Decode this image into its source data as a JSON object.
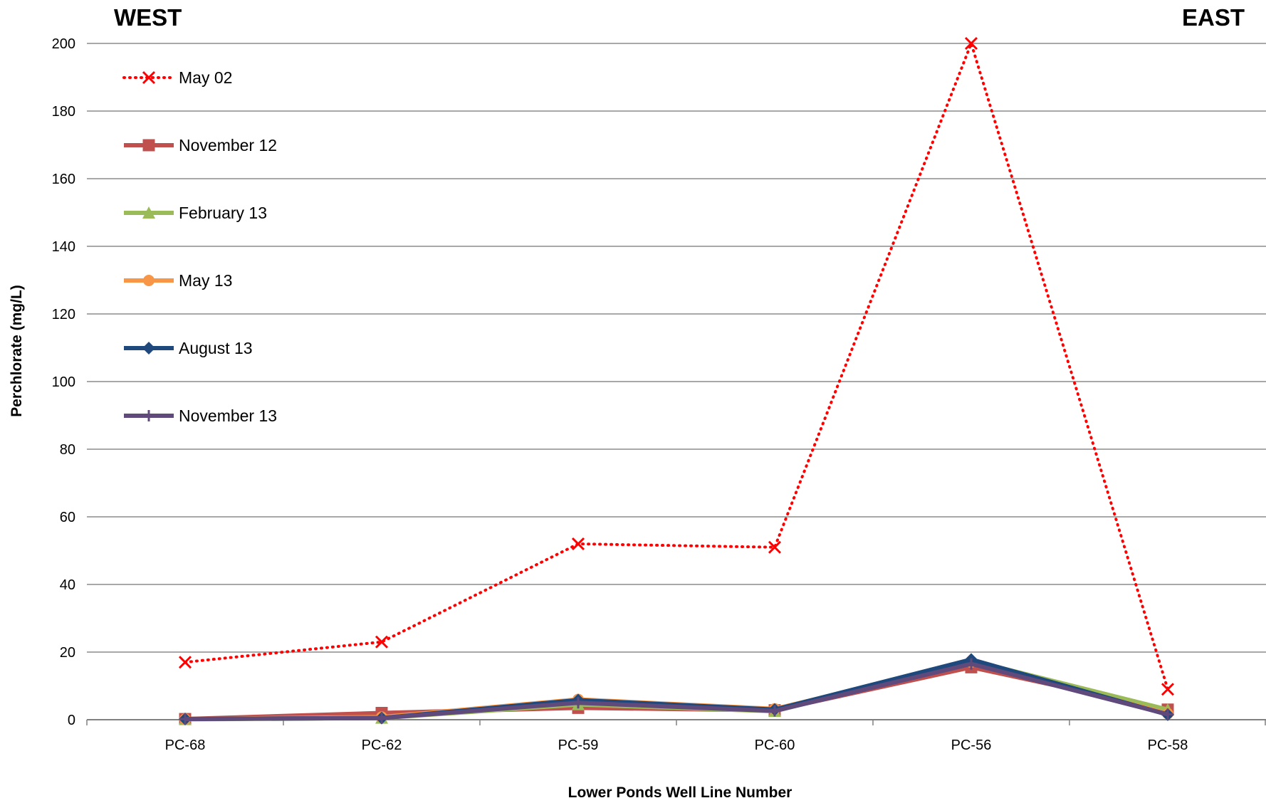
{
  "corner_labels": {
    "left": "WEST",
    "right": "EAST"
  },
  "chart_data": {
    "type": "line",
    "xlabel": "Lower Ponds Well Line Number",
    "ylabel": "Perchlorate (mg/L)",
    "ylim": [
      0,
      200
    ],
    "yticks": [
      0,
      20,
      40,
      60,
      80,
      100,
      120,
      140,
      160,
      180,
      200
    ],
    "grid": true,
    "legend_position": "top-left",
    "categories": [
      "PC-68",
      "PC-62",
      "PC-59",
      "PC-60",
      "PC-56",
      "PC-58"
    ],
    "series": [
      {
        "name": "May 02",
        "values": [
          17,
          23,
          52,
          51,
          200,
          9
        ],
        "color": "#ff0000",
        "marker": "x",
        "style": "dotted"
      },
      {
        "name": "November 12",
        "values": [
          0.2,
          2.0,
          3.5,
          2.8,
          15.5,
          3.0
        ],
        "color": "#c0504d",
        "marker": "square",
        "style": "solid"
      },
      {
        "name": "February 13",
        "values": [
          0.1,
          0.5,
          4.5,
          2.5,
          17.5,
          3.0
        ],
        "color": "#9bbb59",
        "marker": "triangle",
        "style": "solid"
      },
      {
        "name": "May 13",
        "values": [
          0.2,
          0.8,
          6.0,
          3.2,
          17.0,
          1.8
        ],
        "color": "#f79646",
        "marker": "circle",
        "style": "solid"
      },
      {
        "name": "August 13",
        "values": [
          0.2,
          0.5,
          5.8,
          3.0,
          17.8,
          1.5
        ],
        "color": "#1f497d",
        "marker": "diamond",
        "style": "solid"
      },
      {
        "name": "November 13",
        "values": [
          0.2,
          0.5,
          5.0,
          2.6,
          16.5,
          1.6
        ],
        "color": "#604a7b",
        "marker": "plus",
        "style": "solid"
      }
    ]
  }
}
